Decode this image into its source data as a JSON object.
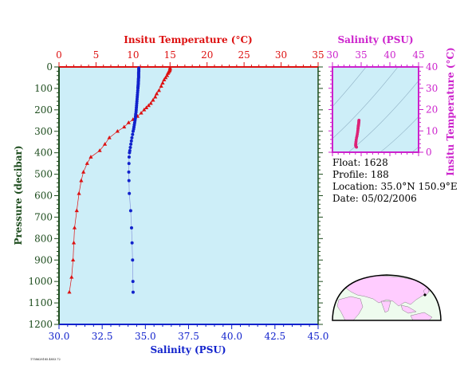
{
  "colors": {
    "plot_bg": "#cdeef8",
    "temperature": "#dd1111",
    "salinity": "#1122cc",
    "salinity_line": "#8899dd",
    "pressure_axis": "#1e4d1e",
    "ts_axis": "#cc22cc",
    "ts_points": "#dd2277",
    "land": "#ffccff",
    "ocean": "#eefbee",
    "map_frame": "#000000"
  },
  "float_info": {
    "float_line": "Float:  1628",
    "profile_line": "Profile:  188",
    "location_line": "Location:  35.0°N  150.9°E",
    "date_line": "Date:  05/02/2006"
  },
  "footer_text": "1758628185.4853.72",
  "chart_data": [
    {
      "type": "line",
      "name": "profile",
      "temp_axis_label": "Insitu Temperature (°C)",
      "sal_axis_label": "Salinity (PSU)",
      "pressure_axis_label": "Pressure (decibar)",
      "temp_ticks": [
        "0",
        "5",
        "10",
        "15",
        "20",
        "25",
        "30",
        "35"
      ],
      "temp_lim": [
        0,
        35
      ],
      "sal_ticks": [
        "30.0",
        "32.5",
        "35.0",
        "37.5",
        "40.0",
        "42.5",
        "45.0"
      ],
      "sal_lim": [
        30,
        45
      ],
      "pressure_ticks": [
        "0",
        "100",
        "200",
        "300",
        "400",
        "500",
        "600",
        "700",
        "800",
        "900",
        "1000",
        "1100",
        "1200"
      ],
      "pressure_lim": [
        0,
        1200
      ],
      "pressure_reversed": true,
      "series": [
        {
          "key": "temperature",
          "marker": "triangle",
          "points": [
            [
              15.0,
              5
            ],
            [
              15.0,
              10
            ],
            [
              14.95,
              15
            ],
            [
              14.9,
              20
            ],
            [
              14.8,
              25
            ],
            [
              14.7,
              30
            ],
            [
              14.6,
              40
            ],
            [
              14.4,
              50
            ],
            [
              14.2,
              60
            ],
            [
              14.0,
              75
            ],
            [
              13.8,
              90
            ],
            [
              13.5,
              110
            ],
            [
              13.2,
              125
            ],
            [
              13.0,
              140
            ],
            [
              12.7,
              155
            ],
            [
              12.4,
              170
            ],
            [
              12.1,
              180
            ],
            [
              11.8,
              190
            ],
            [
              11.5,
              200
            ],
            [
              11.1,
              215
            ],
            [
              10.6,
              230
            ],
            [
              10.0,
              245
            ],
            [
              9.4,
              260
            ],
            [
              8.8,
              280
            ],
            [
              7.9,
              300
            ],
            [
              6.8,
              330
            ],
            [
              6.2,
              360
            ],
            [
              5.5,
              390
            ],
            [
              4.3,
              420
            ],
            [
              3.8,
              450
            ],
            [
              3.3,
              490
            ],
            [
              3.0,
              530
            ],
            [
              2.7,
              590
            ],
            [
              2.4,
              670
            ],
            [
              2.1,
              750
            ],
            [
              2.0,
              820
            ],
            [
              1.9,
              900
            ],
            [
              1.7,
              980
            ],
            [
              1.4,
              1050
            ]
          ]
        },
        {
          "key": "salinity",
          "marker": "circle",
          "points": [
            [
              34.62,
              5
            ],
            [
              34.62,
              10
            ],
            [
              34.62,
              15
            ],
            [
              34.62,
              20
            ],
            [
              34.61,
              25
            ],
            [
              34.61,
              30
            ],
            [
              34.61,
              35
            ],
            [
              34.61,
              40
            ],
            [
              34.61,
              45
            ],
            [
              34.61,
              50
            ],
            [
              34.6,
              55
            ],
            [
              34.6,
              60
            ],
            [
              34.6,
              65
            ],
            [
              34.59,
              70
            ],
            [
              34.59,
              75
            ],
            [
              34.59,
              80
            ],
            [
              34.58,
              85
            ],
            [
              34.58,
              90
            ],
            [
              34.57,
              95
            ],
            [
              34.57,
              100
            ],
            [
              34.56,
              110
            ],
            [
              34.55,
              120
            ],
            [
              34.54,
              130
            ],
            [
              34.53,
              140
            ],
            [
              34.52,
              150
            ],
            [
              34.51,
              160
            ],
            [
              34.5,
              170
            ],
            [
              34.49,
              180
            ],
            [
              34.48,
              190
            ],
            [
              34.47,
              200
            ],
            [
              34.46,
              210
            ],
            [
              34.44,
              220
            ],
            [
              34.43,
              230
            ],
            [
              34.42,
              240
            ],
            [
              34.4,
              250
            ],
            [
              34.38,
              260
            ],
            [
              34.36,
              270
            ],
            [
              34.34,
              280
            ],
            [
              34.32,
              290
            ],
            [
              34.29,
              300
            ],
            [
              34.26,
              315
            ],
            [
              34.22,
              330
            ],
            [
              34.19,
              345
            ],
            [
              34.16,
              360
            ],
            [
              34.13,
              375
            ],
            [
              34.1,
              390
            ],
            [
              34.08,
              400
            ],
            [
              34.06,
              420
            ],
            [
              34.05,
              450
            ],
            [
              34.04,
              490
            ],
            [
              34.05,
              530
            ],
            [
              34.07,
              590
            ],
            [
              34.15,
              670
            ],
            [
              34.2,
              750
            ],
            [
              34.23,
              820
            ],
            [
              34.26,
              900
            ],
            [
              34.28,
              1000
            ],
            [
              34.29,
              1050
            ]
          ]
        }
      ]
    },
    {
      "type": "scatter",
      "name": "ts_diagram",
      "xlabel": "Salinity (PSU)",
      "ylabel": "Insitu Temperature (°C)",
      "x_ticks": [
        "30",
        "35",
        "40",
        "45"
      ],
      "xlim": [
        30,
        45
      ],
      "y_ticks": [
        "0",
        "10",
        "20",
        "30",
        "40"
      ],
      "ylim": [
        0,
        40
      ],
      "points": [
        [
          34.62,
          15.0
        ],
        [
          34.61,
          14.8
        ],
        [
          34.6,
          14.4
        ],
        [
          34.59,
          14.0
        ],
        [
          34.57,
          13.5
        ],
        [
          34.55,
          13.0
        ],
        [
          34.53,
          12.7
        ],
        [
          34.51,
          12.4
        ],
        [
          34.49,
          12.1
        ],
        [
          34.47,
          11.5
        ],
        [
          34.45,
          11.0
        ],
        [
          34.42,
          10.2
        ],
        [
          34.38,
          9.4
        ],
        [
          34.33,
          8.5
        ],
        [
          34.27,
          7.6
        ],
        [
          34.2,
          6.8
        ],
        [
          34.14,
          5.9
        ],
        [
          34.1,
          5.0
        ],
        [
          34.07,
          4.3
        ],
        [
          34.05,
          3.8
        ],
        [
          34.04,
          3.3
        ],
        [
          34.06,
          3.0
        ],
        [
          34.1,
          2.7
        ],
        [
          34.18,
          2.4
        ]
      ]
    }
  ]
}
